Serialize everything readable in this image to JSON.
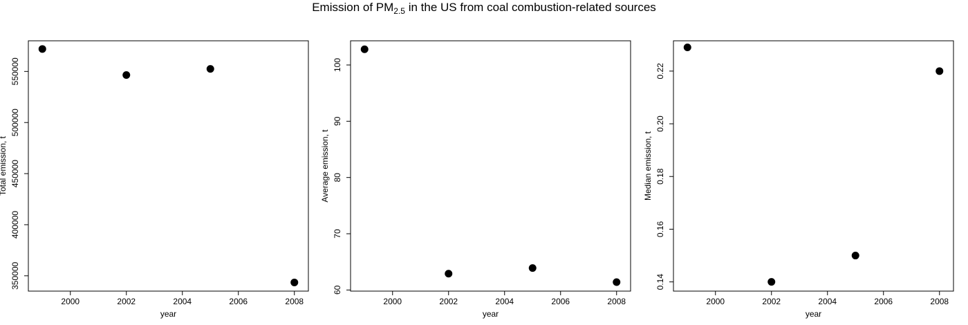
{
  "title": {
    "prefix": "Emission of PM",
    "subscript": "2.5",
    "suffix": " in the US from coal combustion-related sources"
  },
  "chart_data": [
    {
      "type": "scatter",
      "x": [
        1999,
        2002,
        2005,
        2008
      ],
      "y": [
        572000,
        546500,
        552500,
        343500
      ],
      "xlabel": "year",
      "ylabel": "Total emission, t",
      "xlim": [
        1998.5,
        2008.5
      ],
      "ylim": [
        335000,
        580000
      ],
      "xticks": [
        2000,
        2002,
        2004,
        2006,
        2008
      ],
      "yticks": [
        350000,
        400000,
        450000,
        500000,
        550000
      ],
      "grid": false,
      "marker_color": "#000000"
    },
    {
      "type": "scatter",
      "x": [
        1999,
        2002,
        2005,
        2008
      ],
      "y": [
        102.8,
        62.9,
        63.9,
        61.4
      ],
      "xlabel": "year",
      "ylabel": "Average emission, t",
      "xlim": [
        1998.5,
        2008.5
      ],
      "ylim": [
        59.8,
        104.3
      ],
      "xticks": [
        2000,
        2002,
        2004,
        2006,
        2008
      ],
      "yticks": [
        60,
        70,
        80,
        90,
        100
      ],
      "grid": false,
      "marker_color": "#000000"
    },
    {
      "type": "scatter",
      "x": [
        1999,
        2002,
        2005,
        2008
      ],
      "y": [
        0.229,
        0.14,
        0.15,
        0.22
      ],
      "xlabel": "year",
      "ylabel": "Median emission, t",
      "xlim": [
        1998.5,
        2008.5
      ],
      "ylim": [
        0.1365,
        0.2315
      ],
      "xticks": [
        2000,
        2002,
        2004,
        2006,
        2008
      ],
      "yticks": [
        0.14,
        0.16,
        0.18,
        0.2,
        0.22
      ],
      "ytick_labels": [
        "0.14",
        "0.16",
        "0.18",
        "0.20",
        "0.22"
      ],
      "grid": false,
      "marker_color": "#000000"
    }
  ]
}
